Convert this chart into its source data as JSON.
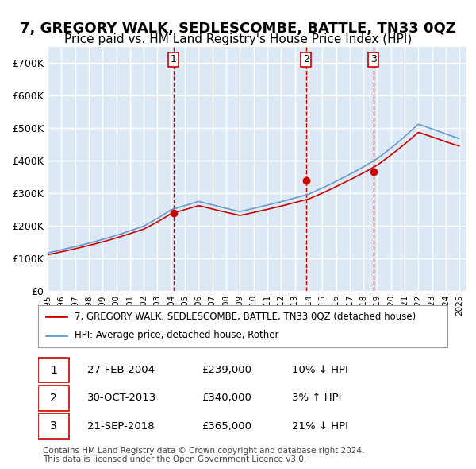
{
  "title": "7, GREGORY WALK, SEDLESCOMBE, BATTLE, TN33 0QZ",
  "subtitle": "Price paid vs. HM Land Registry's House Price Index (HPI)",
  "title_fontsize": 13,
  "subtitle_fontsize": 11,
  "background_color": "#ffffff",
  "plot_bg_color": "#dce9f5",
  "grid_color": "#ffffff",
  "ylim": [
    0,
    750000
  ],
  "yticks": [
    0,
    100000,
    200000,
    300000,
    400000,
    500000,
    600000,
    700000
  ],
  "ytick_labels": [
    "£0",
    "£100K",
    "£200K",
    "£300K",
    "£400K",
    "£500K",
    "£600K",
    "£700K"
  ],
  "sale_dates": [
    "2004-02-27",
    "2013-10-30",
    "2018-09-21"
  ],
  "sale_prices": [
    239000,
    340000,
    365000
  ],
  "sale_labels": [
    "1",
    "2",
    "3"
  ],
  "vline_color": "#cc0000",
  "vline_style": "--",
  "sale_marker_color": "#cc0000",
  "hpi_line_color": "#6699cc",
  "price_line_color": "#cc0000",
  "legend_label_price": "7, GREGORY WALK, SEDLESCOMBE, BATTLE, TN33 0QZ (detached house)",
  "legend_label_hpi": "HPI: Average price, detached house, Rother",
  "table_data": [
    {
      "label": "1",
      "date": "27-FEB-2004",
      "price": "£239,000",
      "hpi": "10% ↓ HPI"
    },
    {
      "label": "2",
      "date": "30-OCT-2013",
      "price": "£340,000",
      "hpi": "3% ↑ HPI"
    },
    {
      "label": "3",
      "date": "21-SEP-2018",
      "price": "£365,000",
      "hpi": "21% ↓ HPI"
    }
  ],
  "footnote": "Contains HM Land Registry data © Crown copyright and database right 2024.\nThis data is licensed under the Open Government Licence v3.0.",
  "xstart_year": 1995,
  "xend_year": 2025
}
